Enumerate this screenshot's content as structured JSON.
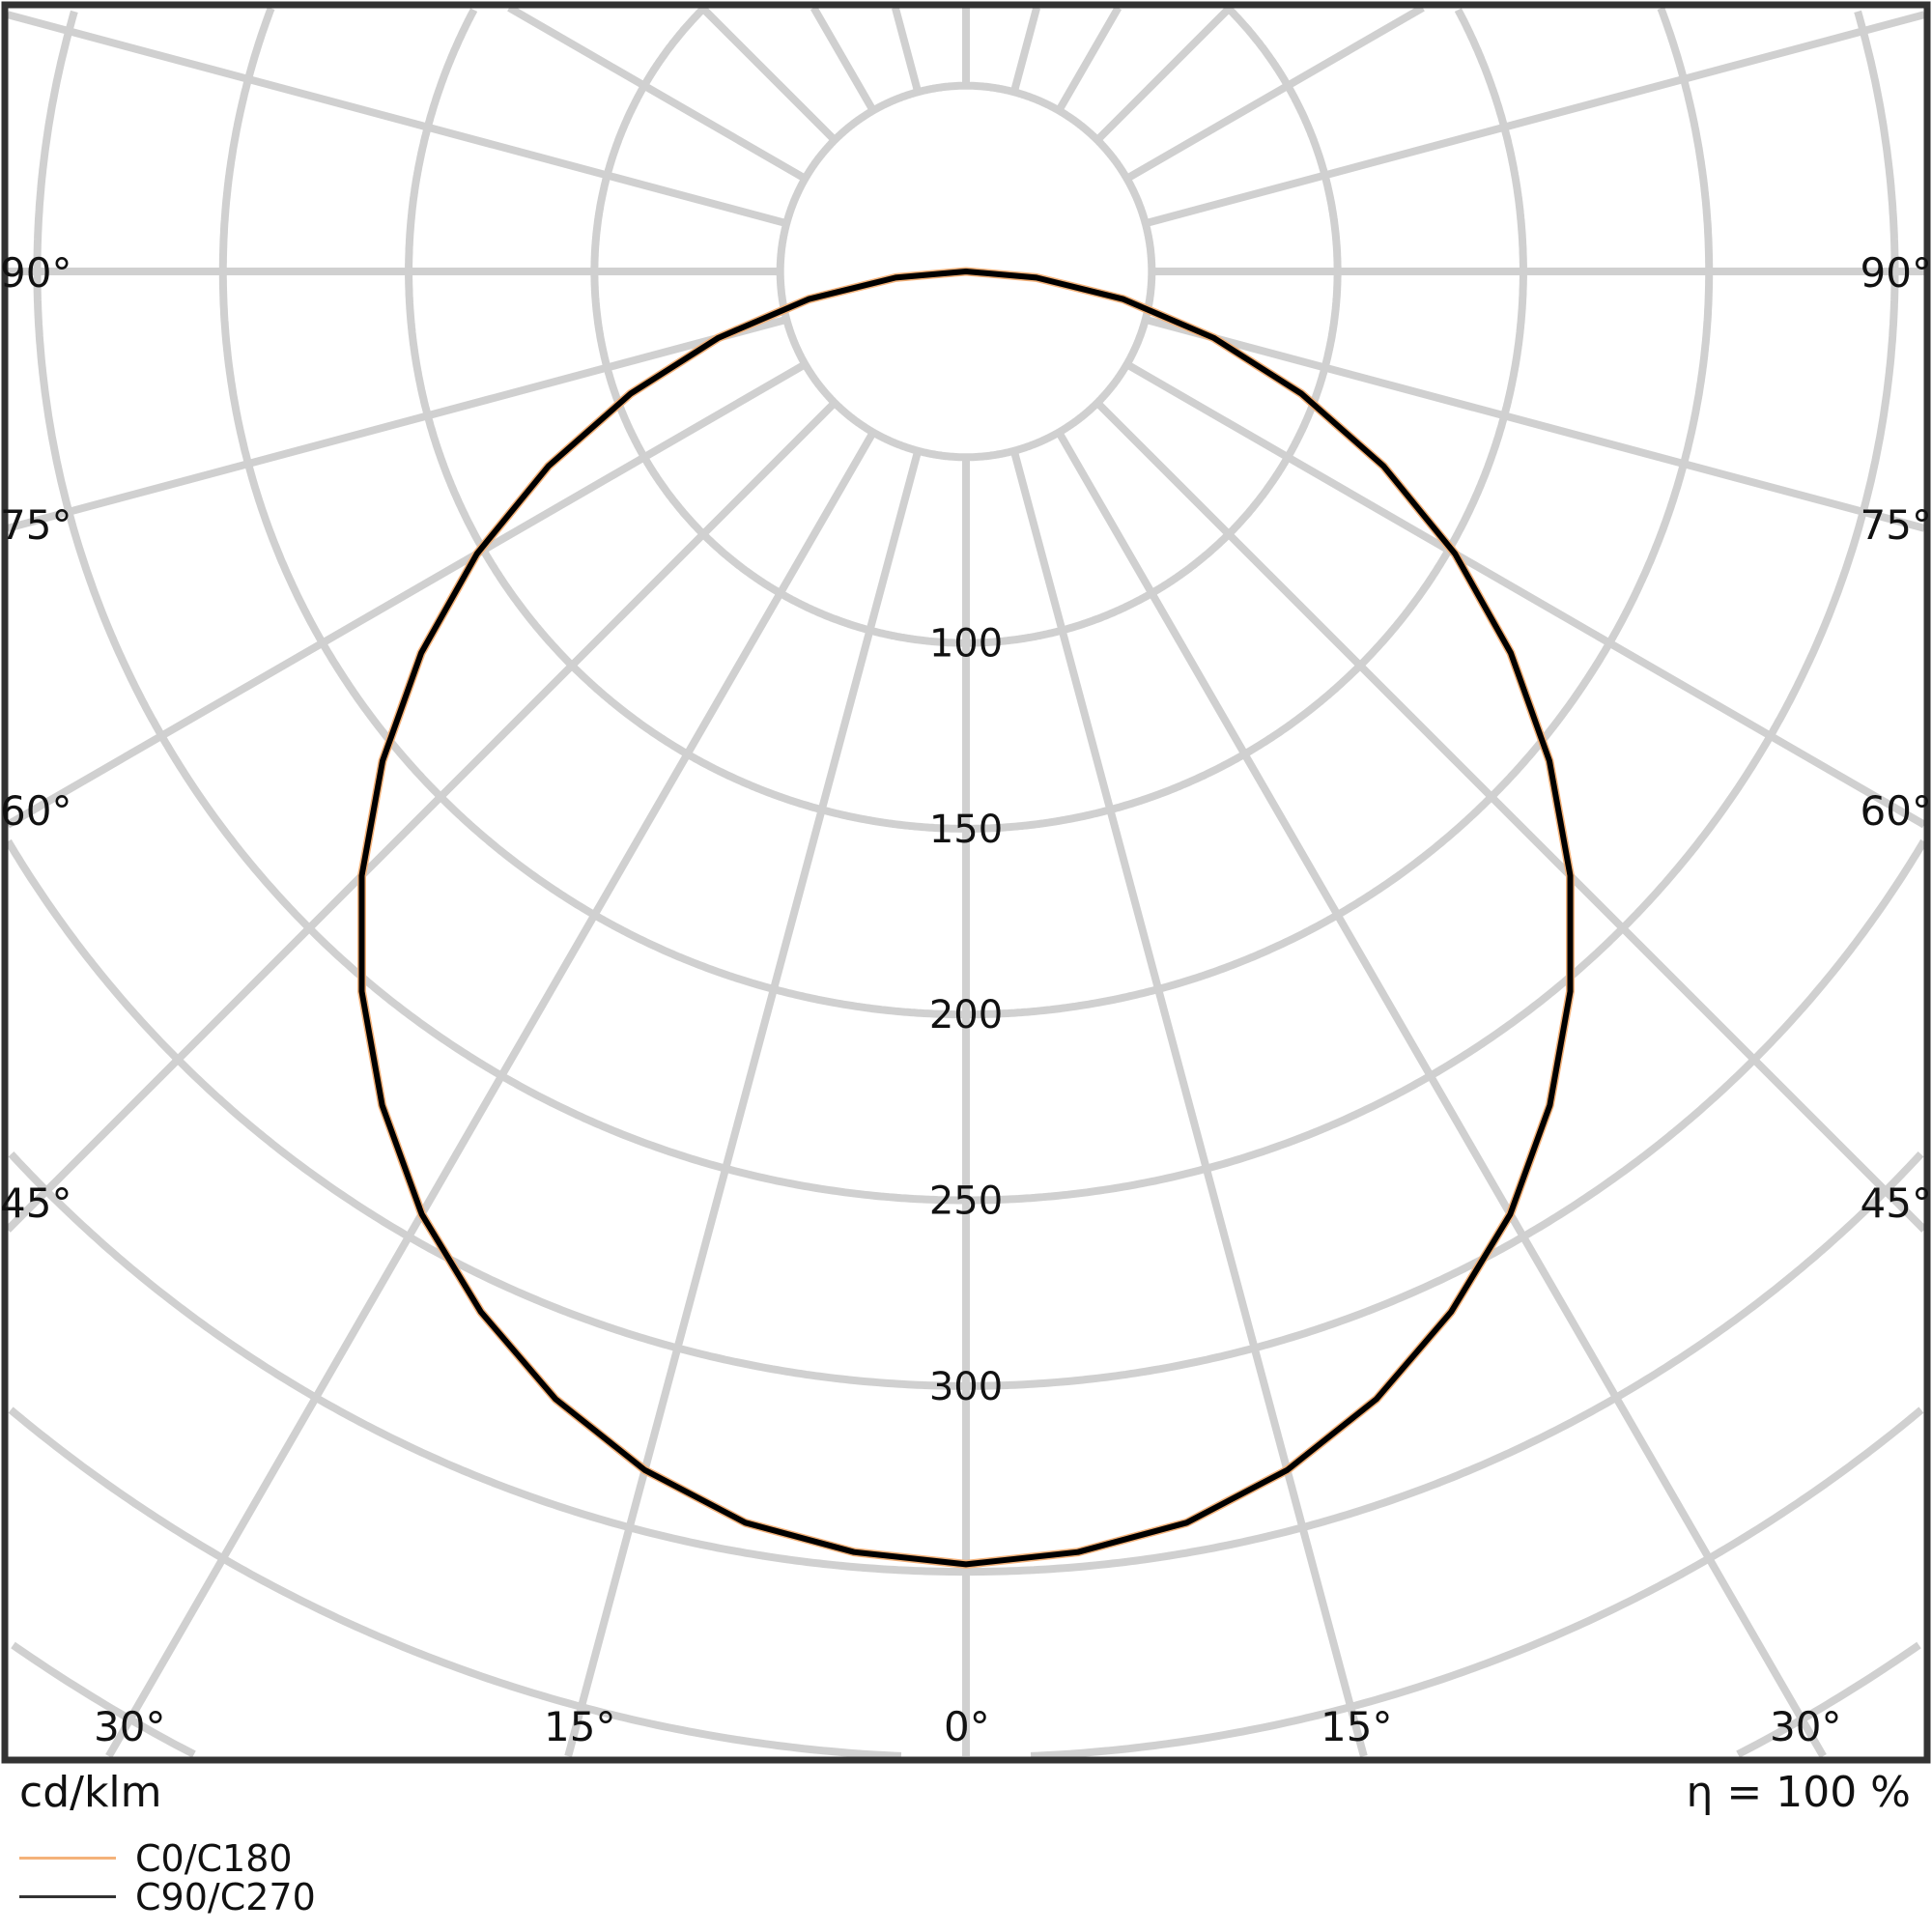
{
  "chart_data": {
    "type": "polar",
    "unit_label": "cd/klm",
    "efficiency_label": "η = 100 %",
    "radial_ticks": [
      50,
      100,
      150,
      200,
      250,
      300,
      350,
      400,
      450,
      500,
      550,
      600
    ],
    "radial_tick_labels": [
      "100",
      "150",
      "200",
      "250",
      "300"
    ],
    "radial_label_values": [
      100,
      150,
      200,
      250,
      300
    ],
    "angle_step_deg": 15,
    "angle_labels_left": [
      "90°",
      "75°",
      "60°",
      "45°"
    ],
    "angle_labels_bottom": [
      "30°",
      "15°",
      "0°",
      "15°",
      "30°"
    ],
    "angle_labels_right": [
      "90°",
      "75°",
      "60°",
      "45°"
    ],
    "grid": true,
    "legend_placement": "bottom-left",
    "angles_deg": [
      0,
      5,
      10,
      15,
      20,
      25,
      30,
      35,
      40,
      45,
      50,
      55,
      60,
      65,
      70,
      75,
      80,
      85,
      90
    ],
    "series": [
      {
        "name": "C0/C180",
        "color": "#f4b27a",
        "values": [
          348,
          346,
          342,
          334,
          323,
          309,
          293,
          274,
          253,
          230,
          205,
          179,
          152,
          124,
          96,
          69,
          43,
          19,
          0
        ]
      },
      {
        "name": "C90/C270",
        "color": "#000000",
        "values": [
          348,
          346,
          342,
          334,
          323,
          309,
          293,
          274,
          253,
          230,
          205,
          179,
          152,
          124,
          96,
          69,
          43,
          19,
          0
        ]
      }
    ]
  }
}
